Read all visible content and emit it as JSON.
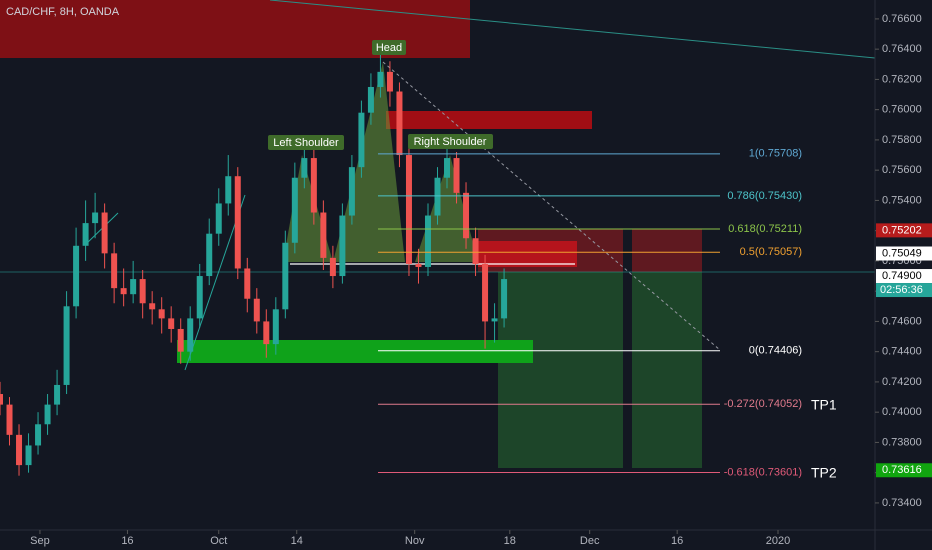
{
  "chart_data": {
    "type": "candlestick",
    "title": "CAD/CHF, 8H, OANDA",
    "up_color": "#26a69a",
    "down_color": "#ef5350",
    "x": [
      0,
      5,
      10,
      15,
      20,
      25,
      30,
      35,
      40,
      45,
      50,
      55,
      60,
      65,
      70,
      75,
      80,
      85,
      90,
      95,
      100,
      105,
      110,
      115,
      120,
      125,
      130,
      135,
      140,
      145,
      150,
      155,
      160,
      165,
      170,
      175,
      180,
      185,
      190,
      195,
      200,
      205,
      210,
      215,
      220,
      225,
      230,
      235,
      240,
      245,
      250,
      255,
      260,
      265
    ],
    "candles": [
      [
        0.7412,
        0.742,
        0.7398,
        0.7405
      ],
      [
        0.7405,
        0.741,
        0.7378,
        0.7385
      ],
      [
        0.7385,
        0.7392,
        0.7358,
        0.7365
      ],
      [
        0.7365,
        0.7386,
        0.736,
        0.7378
      ],
      [
        0.7378,
        0.74,
        0.7372,
        0.7392
      ],
      [
        0.7392,
        0.7412,
        0.7385,
        0.7405
      ],
      [
        0.7405,
        0.7428,
        0.7398,
        0.7418
      ],
      [
        0.7418,
        0.748,
        0.7412,
        0.747
      ],
      [
        0.747,
        0.7522,
        0.7462,
        0.751
      ],
      [
        0.751,
        0.754,
        0.75,
        0.7525
      ],
      [
        0.7525,
        0.7545,
        0.7515,
        0.7532
      ],
      [
        0.7532,
        0.7538,
        0.7495,
        0.7505
      ],
      [
        0.7505,
        0.7512,
        0.7472,
        0.7482
      ],
      [
        0.7482,
        0.7495,
        0.747,
        0.7478
      ],
      [
        0.7478,
        0.75,
        0.7472,
        0.7488
      ],
      [
        0.7488,
        0.7494,
        0.7462,
        0.7472
      ],
      [
        0.7472,
        0.748,
        0.7458,
        0.7468
      ],
      [
        0.7468,
        0.7476,
        0.7452,
        0.7462
      ],
      [
        0.7462,
        0.747,
        0.7446,
        0.7455
      ],
      [
        0.7455,
        0.7462,
        0.7432,
        0.744
      ],
      [
        0.744,
        0.747,
        0.7434,
        0.7462
      ],
      [
        0.7462,
        0.7498,
        0.7456,
        0.749
      ],
      [
        0.749,
        0.7528,
        0.7484,
        0.7518
      ],
      [
        0.7518,
        0.7548,
        0.751,
        0.7538
      ],
      [
        0.7538,
        0.757,
        0.753,
        0.7556
      ],
      [
        0.7556,
        0.7562,
        0.7488,
        0.7495
      ],
      [
        0.7495,
        0.7502,
        0.7466,
        0.7475
      ],
      [
        0.7475,
        0.7482,
        0.7452,
        0.746
      ],
      [
        0.746,
        0.7468,
        0.7436,
        0.7445
      ],
      [
        0.7445,
        0.7476,
        0.7438,
        0.7468
      ],
      [
        0.7468,
        0.752,
        0.7462,
        0.7512
      ],
      [
        0.7512,
        0.7565,
        0.7505,
        0.7555
      ],
      [
        0.7555,
        0.7576,
        0.7548,
        0.7568
      ],
      [
        0.7568,
        0.7574,
        0.7524,
        0.7532
      ],
      [
        0.7532,
        0.754,
        0.7494,
        0.7502
      ],
      [
        0.7502,
        0.751,
        0.7482,
        0.749
      ],
      [
        0.749,
        0.7538,
        0.7485,
        0.753
      ],
      [
        0.753,
        0.757,
        0.7524,
        0.7562
      ],
      [
        0.7562,
        0.7606,
        0.7555,
        0.7598
      ],
      [
        0.7598,
        0.7624,
        0.759,
        0.7615
      ],
      [
        0.7615,
        0.7638,
        0.7608,
        0.7625
      ],
      [
        0.7625,
        0.7632,
        0.7602,
        0.7612
      ],
      [
        0.7612,
        0.7618,
        0.7562,
        0.757
      ],
      [
        0.757,
        0.7578,
        0.749,
        0.7498
      ],
      [
        0.7498,
        0.7508,
        0.7485,
        0.7496
      ],
      [
        0.7496,
        0.7538,
        0.749,
        0.753
      ],
      [
        0.753,
        0.7562,
        0.7524,
        0.7555
      ],
      [
        0.7555,
        0.7575,
        0.7548,
        0.7568
      ],
      [
        0.7568,
        0.7572,
        0.7538,
        0.7545
      ],
      [
        0.7545,
        0.7552,
        0.7508,
        0.7515
      ],
      [
        0.7515,
        0.7522,
        0.749,
        0.7498
      ],
      [
        0.7498,
        0.7504,
        0.7442,
        0.746
      ],
      [
        0.746,
        0.7472,
        0.7446,
        0.7462
      ],
      [
        0.7462,
        0.7495,
        0.7456,
        0.7488
      ]
    ],
    "xlim": [
      0,
      460
    ],
    "ylim": [
      0.73221,
      0.76725
    ],
    "yticks": [
      {
        "value": 0.734,
        "label": "0.73400"
      },
      {
        "value": 0.736,
        "label": "0.73600"
      },
      {
        "value": 0.738,
        "label": "0.73800"
      },
      {
        "value": 0.74,
        "label": "0.74000"
      },
      {
        "value": 0.742,
        "label": "0.74200"
      },
      {
        "value": 0.744,
        "label": "0.74400"
      },
      {
        "value": 0.746,
        "label": "0.74600"
      },
      {
        "value": 0.748,
        "label": "0.74800"
      },
      {
        "value": 0.75,
        "label": "0.75000"
      },
      {
        "value": 0.752,
        "label": "0.75200"
      },
      {
        "value": 0.754,
        "label": "0.75400"
      },
      {
        "value": 0.756,
        "label": "0.75600"
      },
      {
        "value": 0.758,
        "label": "0.75800"
      },
      {
        "value": 0.76,
        "label": "0.76000"
      },
      {
        "value": 0.762,
        "label": "0.76200"
      },
      {
        "value": 0.764,
        "label": "0.76400"
      },
      {
        "value": 0.766,
        "label": "0.76600"
      }
    ],
    "xticks": [
      {
        "value": 21,
        "label": "Sep"
      },
      {
        "value": 67,
        "label": "16"
      },
      {
        "value": 115,
        "label": "Oct"
      },
      {
        "value": 156,
        "label": "14"
      },
      {
        "value": 218,
        "label": "Nov"
      },
      {
        "value": 268,
        "label": "18"
      },
      {
        "value": 310,
        "label": "Dec"
      },
      {
        "value": 356,
        "label": "16"
      },
      {
        "value": 409,
        "label": "2020"
      }
    ],
    "fib_levels": [
      {
        "value": 0.75708,
        "label": "1(0.75708)",
        "color": "#5fa8d3"
      },
      {
        "value": 0.7543,
        "label": "0.786(0.75430)",
        "color": "#4dc3c9"
      },
      {
        "value": 0.75211,
        "label": "0.618(0.75211)",
        "color": "#8bc34a"
      },
      {
        "value": 0.75057,
        "label": "0.5(0.75057)",
        "color": "#f0a030"
      },
      {
        "value": 0.74406,
        "label": "0(0.74406)",
        "color": "#ffffff"
      },
      {
        "value": 0.74052,
        "label": "-0.272(0.74052)",
        "color": "#e07a8c"
      },
      {
        "value": 0.73601,
        "label": "-0.618(0.73601)",
        "color": "#e05a78"
      }
    ],
    "price_markers": [
      {
        "value": 0.75202,
        "label": "0.75202",
        "color": "#b71c1c"
      },
      {
        "value": 0.75049,
        "label": "0.75049",
        "color": "#ffffff"
      },
      {
        "value": 0.749,
        "label": "0.74900",
        "color": "#ffffff"
      },
      {
        "value": 0.73616,
        "label": "0.73616",
        "color": "#11a50f"
      }
    ],
    "countdown": "02:56:36",
    "annotations": {
      "head": "Head",
      "left_shoulder": "Left Shoulder",
      "right_shoulder": "Right Shoulder",
      "tp1": "TP1",
      "tp2": "TP2"
    }
  }
}
